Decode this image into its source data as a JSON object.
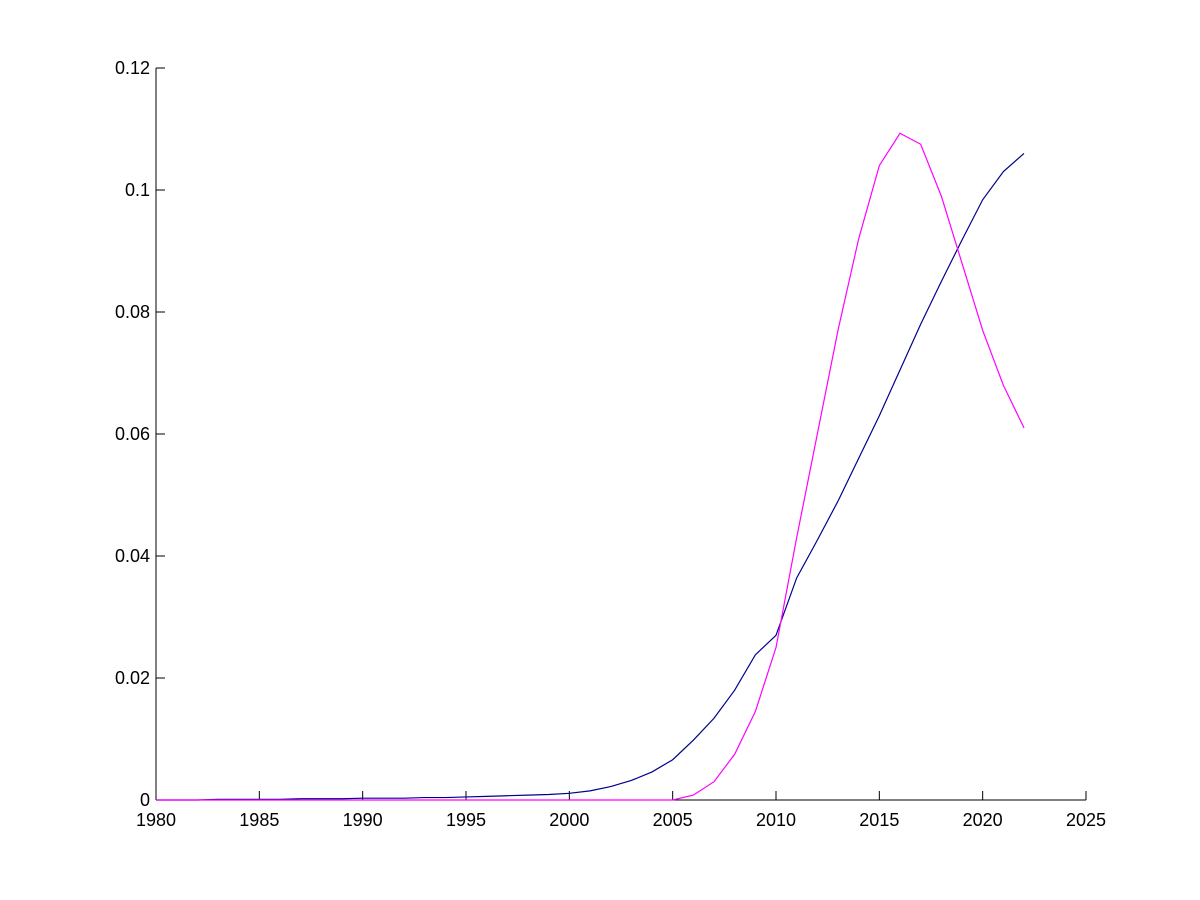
{
  "chart_data": {
    "type": "line",
    "x": [
      1980,
      1981,
      1982,
      1983,
      1984,
      1985,
      1986,
      1987,
      1988,
      1989,
      1990,
      1991,
      1992,
      1993,
      1994,
      1995,
      1996,
      1997,
      1998,
      1999,
      2000,
      2001,
      2002,
      2003,
      2004,
      2005,
      2006,
      2007,
      2008,
      2009,
      2010,
      2011,
      2012,
      2013,
      2014,
      2015,
      2016,
      2017,
      2018,
      2019,
      2020,
      2021,
      2022
    ],
    "series": [
      {
        "color": "#00008b",
        "values": [
          0,
          0,
          0,
          0.0001,
          0.0001,
          0.0001,
          0.0001,
          0.0002,
          0.0002,
          0.0002,
          0.0003,
          0.0003,
          0.0003,
          0.0004,
          0.0004,
          0.0005,
          0.0006,
          0.0007,
          0.0008,
          0.0009,
          0.0011,
          0.0015,
          0.0022,
          0.0032,
          0.0046,
          0.0066,
          0.0098,
          0.0134,
          0.018,
          0.0238,
          0.027,
          0.0364,
          0.0426,
          0.049,
          0.056,
          0.063,
          0.0705,
          0.078,
          0.085,
          0.0918,
          0.0984,
          0.103,
          0.106
        ]
      },
      {
        "color": "#ff00ff",
        "values": [
          0,
          0,
          0,
          0,
          0,
          0,
          0,
          0,
          0,
          0,
          0,
          0,
          0,
          0,
          0,
          0,
          0,
          0,
          0,
          0,
          0,
          0,
          0,
          0,
          0,
          0,
          0.0008,
          0.003,
          0.0075,
          0.0145,
          0.025,
          0.043,
          0.06,
          0.077,
          0.092,
          0.104,
          0.1093,
          0.1075,
          0.099,
          0.088,
          0.077,
          0.068,
          0.061
        ]
      }
    ],
    "xlim": [
      1980,
      2025
    ],
    "xticks": [
      1980,
      1985,
      1990,
      1995,
      2000,
      2005,
      2010,
      2015,
      2020,
      2025
    ],
    "ylim": [
      0,
      0.12
    ],
    "yticks": [
      0,
      0.02,
      0.04,
      0.06,
      0.08,
      0.1,
      0.12
    ]
  }
}
